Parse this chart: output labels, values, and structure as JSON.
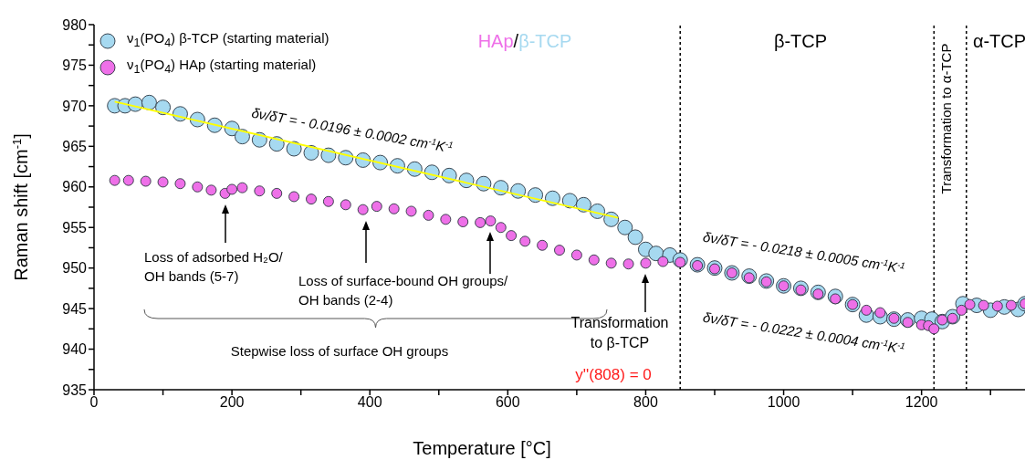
{
  "chart_data": {
    "type": "scatter",
    "xlabel": "Temperature [°C]",
    "ylabel": "Raman shift [cm$^{-1}$]",
    "xlim": [
      0,
      1350
    ],
    "ylim": [
      935,
      980
    ],
    "xticks": [
      0,
      {
        "value": 100,
        "label": null
      },
      200,
      {
        "value": 300,
        "label": null
      },
      400,
      {
        "value": 500,
        "label": null
      },
      600,
      {
        "value": 700,
        "label": null
      },
      800,
      {
        "value": 900,
        "label": null
      },
      1000,
      {
        "value": 1100,
        "label": null
      },
      1200,
      {
        "value": 1300,
        "label": null
      }
    ],
    "yticks": [
      935,
      {
        "value": 937.5,
        "label": null
      },
      940,
      {
        "value": 942.5,
        "label": null
      },
      945,
      {
        "value": 947.5,
        "label": null
      },
      950,
      {
        "value": 952.5,
        "label": null
      },
      955,
      {
        "value": 957.5,
        "label": null
      },
      960,
      {
        "value": 962.5,
        "label": null
      },
      965,
      {
        "value": 967.5,
        "label": null
      },
      970,
      {
        "value": 972.5,
        "label": null
      },
      975,
      {
        "value": 977.5,
        "label": null
      },
      980
    ],
    "grid": false,
    "legend": "top left",
    "marker": "circle",
    "series": [
      {
        "name": "ν$_{1}$(PO$_{4}$) β-TCP (starting material)",
        "color": "#a6d9f0",
        "x": [
          30,
          45,
          60,
          80,
          100,
          125,
          150,
          175,
          200,
          215,
          240,
          265,
          290,
          315,
          340,
          365,
          390,
          415,
          440,
          465,
          490,
          515,
          540,
          565,
          590,
          615,
          640,
          665,
          690,
          710,
          730,
          750,
          770,
          785,
          800,
          815,
          835,
          850,
          875,
          900,
          925,
          950,
          975,
          1000,
          1025,
          1050,
          1075,
          1100,
          1120,
          1140,
          1160,
          1180,
          1200,
          1215,
          1230,
          1245,
          1260,
          1280,
          1300,
          1320,
          1340,
          1350
        ],
        "values": [
          970.0,
          970.0,
          970.2,
          970.4,
          969.8,
          969.0,
          968.3,
          967.6,
          967.2,
          966.2,
          965.8,
          965.3,
          964.7,
          964.2,
          963.9,
          963.6,
          963.3,
          963.0,
          962.6,
          962.2,
          961.8,
          961.4,
          960.8,
          960.4,
          959.9,
          959.5,
          959.0,
          958.6,
          958.3,
          957.8,
          957.0,
          956.0,
          955.0,
          953.8,
          952.3,
          951.8,
          951.6,
          951.0,
          950.4,
          950.0,
          949.4,
          949.0,
          948.4,
          947.8,
          947.5,
          947.0,
          946.5,
          945.5,
          944.2,
          944.0,
          943.7,
          943.6,
          943.8,
          943.7,
          943.4,
          944.0,
          945.6,
          945.4,
          944.8,
          945.2,
          944.9,
          945.6
        ]
      },
      {
        "name": "ν$_{1}$(PO$_{4}$) HAp (starting material)",
        "color": "#ee70e8",
        "x": [
          30,
          50,
          75,
          100,
          125,
          150,
          170,
          190,
          200,
          215,
          240,
          265,
          290,
          315,
          340,
          365,
          390,
          410,
          435,
          460,
          485,
          510,
          535,
          560,
          575,
          590,
          605,
          625,
          650,
          675,
          700,
          725,
          750,
          775,
          800,
          825,
          850,
          875,
          900,
          925,
          950,
          975,
          1000,
          1025,
          1050,
          1075,
          1100,
          1120,
          1140,
          1160,
          1180,
          1200,
          1210,
          1218,
          1230,
          1245,
          1258,
          1270,
          1290,
          1310,
          1330,
          1350
        ],
        "values": [
          960.8,
          960.8,
          960.7,
          960.6,
          960.4,
          960.0,
          959.6,
          959.2,
          959.7,
          959.9,
          959.5,
          959.2,
          958.8,
          958.5,
          958.2,
          957.8,
          957.2,
          957.6,
          957.3,
          957.0,
          956.5,
          956.0,
          955.7,
          955.6,
          955.8,
          955.0,
          954.0,
          953.3,
          952.8,
          952.2,
          951.6,
          951.0,
          950.6,
          950.5,
          950.6,
          950.8,
          950.7,
          950.3,
          949.9,
          949.4,
          948.8,
          948.3,
          947.8,
          947.3,
          946.8,
          946.2,
          945.5,
          944.8,
          944.5,
          943.8,
          943.3,
          943.0,
          942.9,
          942.5,
          943.6,
          943.8,
          944.8,
          945.5,
          945.4,
          945.3,
          945.4,
          945.6
        ]
      },
      {
        "type": "line",
        "marker": "none",
        "color": "#ffff00",
        "x": [
          30,
          760
        ],
        "values": [
          970.5,
          956.2
        ]
      }
    ],
    "ref_lines": [
      {
        "axis": "x",
        "value": 850,
        "line_style": "dotted",
        "color": "#000000"
      },
      {
        "axis": "x",
        "value": 1218,
        "line_style": "dotted",
        "color": "#000000"
      },
      {
        "axis": "x",
        "value": 1265,
        "line_style": "dotted",
        "color": "#000000"
      }
    ],
    "annotations": [
      "HAp/β-TCP",
      "β-TCP",
      "Transformation to α-TCP",
      "α-TCP",
      "δν/δT = - 0.0196 ± 0.0002 cm$^{-1}$K$^{-1}$",
      "δν/δT = - 0.0218 ± 0.0005 cm$^{-1}$K$^{-1}$",
      "δν/δT = - 0.0222 ± 0.0004 cm$^{-1}$K$^{-1}$",
      "Loss of adsorbed H₂O/\nOH bands (5-7)",
      "Loss of surface-bound OH groups/\nOH bands (2-4)",
      "Stepwise loss of surface OH groups",
      "Transformation\nto β-TCP",
      "y''(808) = 0"
    ]
  }
}
